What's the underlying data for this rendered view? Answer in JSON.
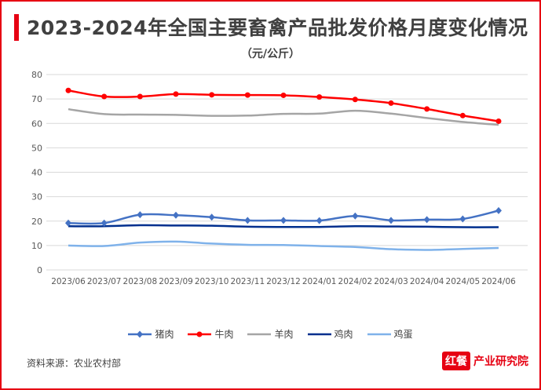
{
  "title": "2023-2024年全国主要畜禽产品批发价格月度变化情况",
  "unit": "（元/公斤）",
  "source": "资料来源：农业农村部",
  "logo": {
    "mark": "红餐",
    "text": "产业研究院"
  },
  "chart_data": {
    "type": "line",
    "title": "2023-2024年全国主要畜禽产品批发价格月度变化情况",
    "ylabel": "（元/公斤）",
    "ylim": [
      0,
      80
    ],
    "yticks": [
      0,
      10,
      20,
      30,
      40,
      50,
      60,
      70,
      80
    ],
    "grid": true,
    "legend_position": "bottom",
    "categories": [
      "2023/06",
      "2023/07",
      "2023/08",
      "2023/09",
      "2023/10",
      "2023/11",
      "2023/12",
      "2024/01",
      "2024/02",
      "2024/03",
      "2024/04",
      "2024/05",
      "2024/06"
    ],
    "series": [
      {
        "name": "猪肉",
        "color": "#4472c4",
        "marker": "diamond",
        "values": [
          19.2,
          19.2,
          22.6,
          22.4,
          21.6,
          20.3,
          20.3,
          20.2,
          22.1,
          20.3,
          20.6,
          20.9,
          24.3
        ]
      },
      {
        "name": "牛肉",
        "color": "#ff0000",
        "marker": "circle",
        "values": [
          73.5,
          71.0,
          71.0,
          72.0,
          71.7,
          71.6,
          71.5,
          70.8,
          69.8,
          68.3,
          65.9,
          63.2,
          60.9
        ]
      },
      {
        "name": "羊肉",
        "color": "#a5a5a5",
        "marker": "none",
        "values": [
          65.8,
          63.8,
          63.6,
          63.5,
          63.1,
          63.2,
          63.9,
          64.0,
          65.2,
          64.0,
          62.2,
          60.6,
          59.4
        ]
      },
      {
        "name": "鸡肉",
        "color": "#002f8e",
        "marker": "none",
        "values": [
          17.9,
          17.9,
          18.3,
          18.2,
          18.1,
          17.7,
          17.6,
          17.6,
          17.9,
          17.8,
          17.7,
          17.5,
          17.5
        ]
      },
      {
        "name": "鸡蛋",
        "color": "#7fb2ea",
        "marker": "none",
        "values": [
          10.0,
          9.8,
          11.2,
          11.6,
          10.8,
          10.3,
          10.2,
          9.8,
          9.4,
          8.5,
          8.2,
          8.6,
          9.0
        ]
      }
    ]
  }
}
